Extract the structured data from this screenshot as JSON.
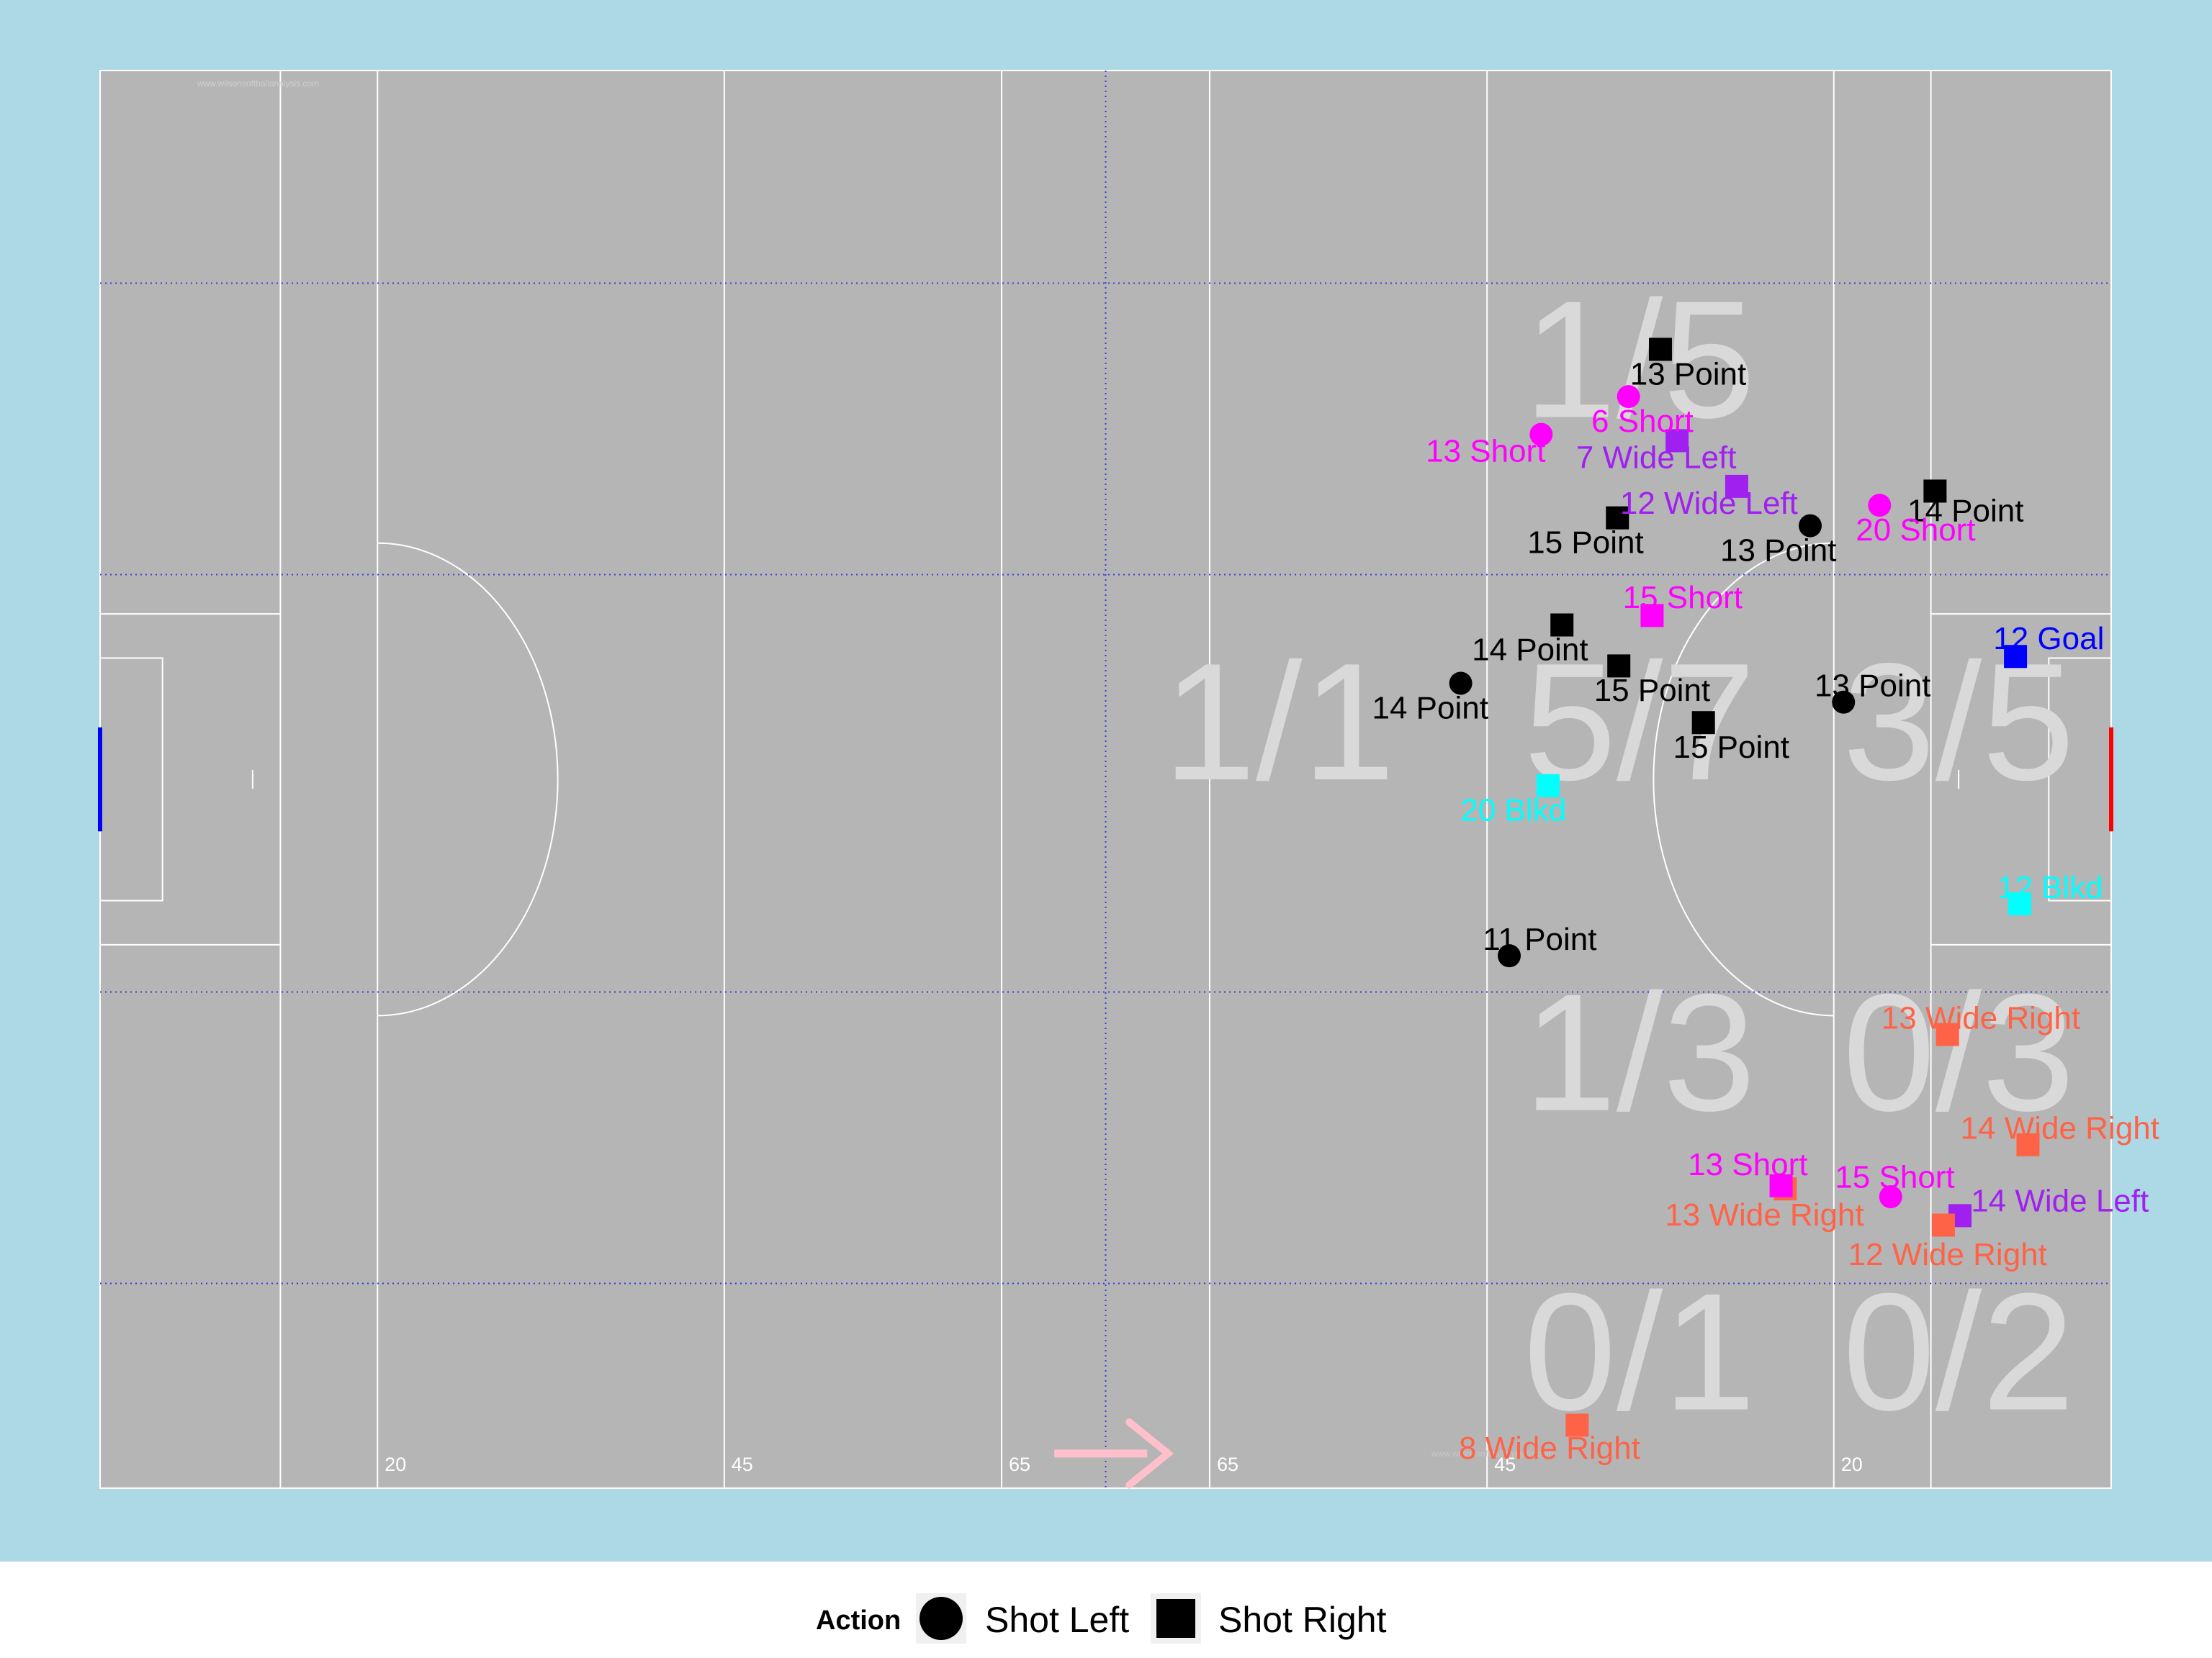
{
  "chart_data": {
    "type": "scatter",
    "title": "",
    "xlabel": "",
    "ylabel": "",
    "xlim": [
      0,
      145
    ],
    "ylim": [
      0,
      90
    ],
    "colors": {
      "outer_background": "#add8e6",
      "pitch": "#b5b5b5",
      "pitch_lines": "#ffffff",
      "grid": "#3a3adb",
      "zone_text": "#d9d9d9",
      "point": "#000000",
      "short": "#ff00ff",
      "wide_left": "#a020f0",
      "wide_right": "#ff6347",
      "goal": "#0000ff",
      "blocked": "#00ffff",
      "arrow": "#ffc0cb",
      "left_goal": "#0000ff",
      "right_goal": "#ff0000"
    },
    "watermark": "www.wilsonsoftballanalysis.com",
    "distance_markers": [
      {
        "x": 20,
        "label": "20"
      },
      {
        "x": 45,
        "label": "45"
      },
      {
        "x": 65,
        "label": "65"
      },
      {
        "x": 80,
        "label": "65"
      },
      {
        "x": 100,
        "label": "45"
      },
      {
        "x": 125,
        "label": "20"
      }
    ],
    "zones": [
      {
        "label": "1/5",
        "x": 111,
        "y": 68
      },
      {
        "label": "1/1",
        "x": 85,
        "y": 45
      },
      {
        "label": "5/7",
        "x": 111,
        "y": 45
      },
      {
        "label": "3/5",
        "x": 134,
        "y": 45
      },
      {
        "label": "1/3",
        "x": 111,
        "y": 24
      },
      {
        "label": "0/3",
        "x": 134,
        "y": 24
      },
      {
        "label": "0/1",
        "x": 111,
        "y": 5
      },
      {
        "label": "0/2",
        "x": 134,
        "y": 5
      }
    ],
    "legend": {
      "title": "Action",
      "items": [
        {
          "label": "Shot Left",
          "shape": "circle"
        },
        {
          "label": "Shot Right",
          "shape": "square"
        }
      ]
    },
    "series": [
      {
        "label": "13 Point",
        "x": 112.5,
        "y": 72.3,
        "shape": "square",
        "kind": "point",
        "label_dx": 2,
        "label_dy": -1.5
      },
      {
        "label": "6 Short",
        "x": 110.2,
        "y": 69.3,
        "shape": "circle",
        "kind": "short",
        "label_dx": 1,
        "label_dy": -1.5
      },
      {
        "label": "13 Short",
        "x": 103.9,
        "y": 66.9,
        "shape": "circle",
        "kind": "short",
        "label_dx": -4,
        "label_dy": -1
      },
      {
        "label": "7 Wide Left",
        "x": 113.7,
        "y": 66.5,
        "shape": "square",
        "kind": "wide_left",
        "label_dx": -1.5,
        "label_dy": -1
      },
      {
        "label": "12 Wide Left",
        "x": 118.0,
        "y": 63.6,
        "shape": "square",
        "kind": "wide_left",
        "label_dx": -2,
        "label_dy": -1
      },
      {
        "label": "14 Point",
        "x": 132.3,
        "y": 63.3,
        "shape": "square",
        "kind": "point",
        "label_dx": 2.2,
        "label_dy": -1.2
      },
      {
        "label": "20 Short",
        "x": 128.3,
        "y": 62.4,
        "shape": "circle",
        "kind": "short",
        "label_dx": 2.6,
        "label_dy": -1.5
      },
      {
        "label": "15 Point",
        "x": 109.4,
        "y": 61.6,
        "shape": "square",
        "kind": "point",
        "label_dx": -2.3,
        "label_dy": -1.5
      },
      {
        "label": "13 Point",
        "x": 123.3,
        "y": 61.1,
        "shape": "circle",
        "kind": "point",
        "label_dx": -2.3,
        "label_dy": -1.5
      },
      {
        "label": "15 Short",
        "x": 111.9,
        "y": 55.4,
        "shape": "square",
        "kind": "short",
        "label_dx": 2.2,
        "label_dy": 1.2
      },
      {
        "label": "14 Point",
        "x": 105.4,
        "y": 54.8,
        "shape": "square",
        "kind": "point",
        "label_dx": -2.3,
        "label_dy": -1.5
      },
      {
        "label": "12 Goal",
        "x": 138.1,
        "y": 52.8,
        "shape": "square",
        "kind": "goal",
        "label_dx": 2.4,
        "label_dy": 1.2
      },
      {
        "label": "15 Point",
        "x": 109.5,
        "y": 52.2,
        "shape": "square",
        "kind": "point",
        "label_dx": 2.4,
        "label_dy": -1.5
      },
      {
        "label": "14 Point",
        "x": 98.1,
        "y": 51.1,
        "shape": "circle",
        "kind": "point",
        "label_dx": -2.2,
        "label_dy": -1.5
      },
      {
        "label": "13 Point",
        "x": 125.7,
        "y": 49.9,
        "shape": "circle",
        "kind": "point",
        "label_dx": 2.1,
        "label_dy": 1.1
      },
      {
        "label": "15 Point",
        "x": 115.6,
        "y": 48.6,
        "shape": "square",
        "kind": "point",
        "label_dx": 2.0,
        "label_dy": -1.5
      },
      {
        "label": "20 Blkd",
        "x": 104.4,
        "y": 44.6,
        "shape": "square",
        "kind": "blocked",
        "label_dx": -2.5,
        "label_dy": -1.5
      },
      {
        "label": "12 Blkd",
        "x": 138.4,
        "y": 37.1,
        "shape": "square",
        "kind": "blocked",
        "label_dx": 2.2,
        "label_dy": 1.1
      },
      {
        "label": "11 Point",
        "x": 101.6,
        "y": 33.8,
        "shape": "circle",
        "kind": "point",
        "label_dx": 2.2,
        "label_dy": 1.1
      },
      {
        "label": "13 Wide Right",
        "x": 133.2,
        "y": 28.8,
        "shape": "square",
        "kind": "wide_right",
        "label_dx": 2.4,
        "label_dy": 1.1
      },
      {
        "label": "14 Wide Right",
        "x": 139.0,
        "y": 21.8,
        "shape": "square",
        "kind": "wide_right",
        "label_dx": 2.3,
        "label_dy": 1.1
      },
      {
        "label": "13 Wide Right",
        "x": 121.5,
        "y": 19.0,
        "shape": "square",
        "kind": "wide_right",
        "label_dx": -1.5,
        "label_dy": -1.6
      },
      {
        "label": "13 Short",
        "x": 121.2,
        "y": 19.2,
        "shape": "square",
        "kind": "short",
        "label_dx": -2.4,
        "label_dy": 1.4
      },
      {
        "label": "15 Short",
        "x": 129.1,
        "y": 18.5,
        "shape": "circle",
        "kind": "short",
        "label_dx": 0.3,
        "label_dy": 1.3
      },
      {
        "label": "14 Wide Left",
        "x": 134.1,
        "y": 17.3,
        "shape": "square",
        "kind": "wide_left",
        "label_dx": 7.2,
        "label_dy": 1.0
      },
      {
        "label": "12 Wide Right",
        "x": 132.9,
        "y": 16.7,
        "shape": "square",
        "kind": "wide_right",
        "label_dx": 0.3,
        "label_dy": -1.8
      },
      {
        "label": "8 Wide Right",
        "x": 106.5,
        "y": 4.0,
        "shape": "square",
        "kind": "wide_right",
        "label_dx": -2.0,
        "label_dy": -1.4
      }
    ]
  }
}
